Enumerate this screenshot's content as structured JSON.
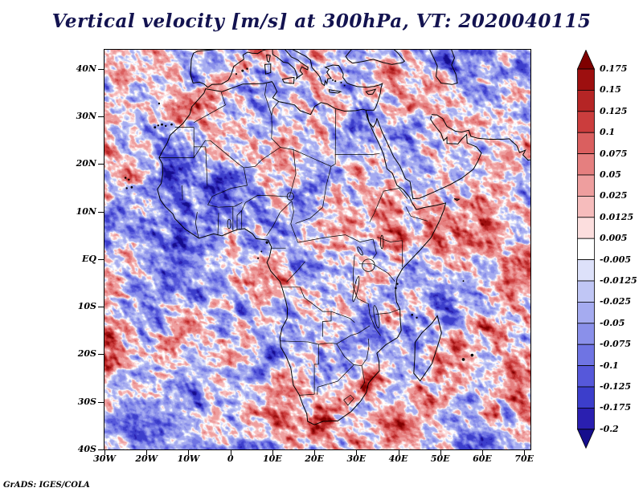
{
  "header": {
    "title": "Vertical velocity [m/s] at 300hPa, VT: 2020040115",
    "title_color": "#131350"
  },
  "footer": {
    "credit": "GrADS: IGES/COLA"
  },
  "chart_data": {
    "type": "heatmap",
    "title": "Vertical velocity [m/s] at 300hPa, VT: 2020040115",
    "variable": "Vertical velocity",
    "units": "m/s",
    "pressure_level": "300hPa",
    "valid_time": "2020040115",
    "region": "Africa and surrounding oceans",
    "x_ticks": [
      "30W",
      "20W",
      "10W",
      "0",
      "10E",
      "20E",
      "30E",
      "40E",
      "50E",
      "60E",
      "70E"
    ],
    "y_ticks": [
      "40N",
      "30N",
      "20N",
      "10N",
      "EQ",
      "10S",
      "20S",
      "30S",
      "40S"
    ],
    "lon_range": [
      -30,
      71.5
    ],
    "lat_range": [
      -40,
      44
    ],
    "grid": false,
    "legend_position": "right",
    "colorbar": {
      "levels_top_to_bottom": [
        "0.175",
        "0.15",
        "0.125",
        "0.1",
        "0.075",
        "0.05",
        "0.025",
        "0.0125",
        "0.005",
        "-0.005",
        "-0.0125",
        "-0.025",
        "-0.05",
        "-0.075",
        "-0.1",
        "-0.125",
        "-0.175",
        "-0.2"
      ],
      "colors_top_to_bottom": [
        "#7f0000",
        "#9d0f0f",
        "#b52525",
        "#cb3d3d",
        "#da5f5f",
        "#e57f7f",
        "#ee9e9e",
        "#f6bcbc",
        "#fcdede",
        "#ffffff",
        "#dde1fa",
        "#c0c6f5",
        "#a5abf0",
        "#8a90ea",
        "#6f74e3",
        "#5658da",
        "#3c3ecb",
        "#2a1fb0",
        "#150d8c"
      ]
    },
    "field_note": "Grainy field of positive (red) and negative (blue) vertical-velocity cells over the map"
  }
}
